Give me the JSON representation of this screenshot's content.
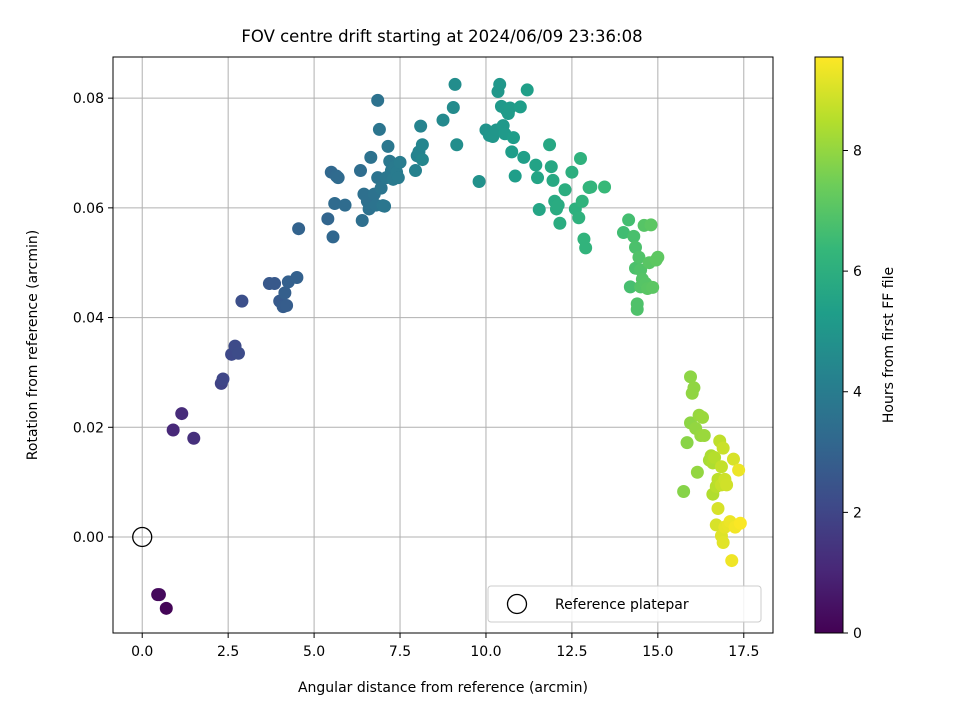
{
  "chart_data": {
    "type": "scatter",
    "title": "FOV centre drift starting at 2024/06/09 23:36:08",
    "xlabel": "Angular distance from reference (arcmin)",
    "ylabel": "Rotation from reference (arcmin)",
    "xlim": [
      -0.85,
      18.35
    ],
    "ylim": [
      -0.0175,
      0.0875
    ],
    "xticks": [
      0.0,
      2.5,
      5.0,
      7.5,
      10.0,
      12.5,
      15.0,
      17.5
    ],
    "xtick_labels": [
      "0.0",
      "2.5",
      "5.0",
      "7.5",
      "10.0",
      "12.5",
      "15.0",
      "17.5"
    ],
    "yticks": [
      0.0,
      0.02,
      0.04,
      0.06,
      0.08
    ],
    "ytick_labels": [
      "0.00",
      "0.02",
      "0.04",
      "0.06",
      "0.08"
    ],
    "grid": true,
    "colormap": "viridis",
    "colorbar": {
      "label": "Hours from first FF file",
      "range": [
        0,
        9.55
      ],
      "ticks": [
        0,
        2,
        4,
        6,
        8
      ],
      "tick_labels": [
        "0",
        "2",
        "4",
        "6",
        "8"
      ]
    },
    "legend": {
      "position": "lower-right",
      "entries": [
        "Reference platepar"
      ]
    },
    "reference": {
      "x": 0.0,
      "y": 0.0
    },
    "points": [
      [
        0.7,
        -0.013,
        0.1
      ],
      [
        0.45,
        -0.0105,
        0.2
      ],
      [
        0.5,
        -0.0105,
        0.25
      ],
      [
        0.9,
        0.0195,
        1.1
      ],
      [
        1.15,
        0.0225,
        1.2
      ],
      [
        1.5,
        0.018,
        1.3
      ],
      [
        2.3,
        0.028,
        1.9
      ],
      [
        2.35,
        0.0288,
        2.0
      ],
      [
        2.6,
        0.0333,
        2.1
      ],
      [
        2.7,
        0.0348,
        2.15
      ],
      [
        2.8,
        0.0335,
        2.2
      ],
      [
        2.9,
        0.043,
        2.3
      ],
      [
        3.7,
        0.0462,
        2.6
      ],
      [
        3.85,
        0.0462,
        2.65
      ],
      [
        4.0,
        0.043,
        2.7
      ],
      [
        4.1,
        0.042,
        2.75
      ],
      [
        4.2,
        0.0422,
        2.8
      ],
      [
        4.15,
        0.0445,
        2.85
      ],
      [
        4.25,
        0.0465,
        2.9
      ],
      [
        4.5,
        0.0473,
        2.95
      ],
      [
        4.55,
        0.0562,
        3.0
      ],
      [
        5.4,
        0.058,
        3.1
      ],
      [
        5.55,
        0.0547,
        3.15
      ],
      [
        5.5,
        0.0665,
        3.2
      ],
      [
        5.65,
        0.0658,
        3.25
      ],
      [
        5.7,
        0.0655,
        3.3
      ],
      [
        5.6,
        0.0608,
        3.3
      ],
      [
        5.9,
        0.0605,
        3.35
      ],
      [
        6.35,
        0.0668,
        3.4
      ],
      [
        6.4,
        0.0577,
        3.45
      ],
      [
        6.45,
        0.0625,
        3.5
      ],
      [
        6.55,
        0.0612,
        3.5
      ],
      [
        6.6,
        0.0598,
        3.55
      ],
      [
        6.65,
        0.0692,
        3.6
      ],
      [
        6.75,
        0.0625,
        3.6
      ],
      [
        6.8,
        0.0605,
        3.65
      ],
      [
        6.85,
        0.0655,
        3.65
      ],
      [
        6.9,
        0.0743,
        3.7
      ],
      [
        6.95,
        0.0636,
        3.7
      ],
      [
        7.0,
        0.0604,
        3.75
      ],
      [
        7.05,
        0.0603,
        3.75
      ],
      [
        7.1,
        0.0655,
        3.8
      ],
      [
        7.15,
        0.0712,
        3.8
      ],
      [
        7.2,
        0.0685,
        3.85
      ],
      [
        7.25,
        0.0668,
        3.85
      ],
      [
        7.3,
        0.0652,
        3.9
      ],
      [
        7.35,
        0.0675,
        3.9
      ],
      [
        7.4,
        0.0665,
        3.95
      ],
      [
        7.45,
        0.0655,
        3.95
      ],
      [
        7.5,
        0.0683,
        4.0
      ],
      [
        6.85,
        0.0796,
        3.6
      ],
      [
        7.95,
        0.0668,
        4.2
      ],
      [
        8.0,
        0.0695,
        4.25
      ],
      [
        8.05,
        0.0702,
        4.3
      ],
      [
        8.1,
        0.0749,
        4.3
      ],
      [
        8.15,
        0.0715,
        4.35
      ],
      [
        8.15,
        0.0688,
        4.4
      ],
      [
        8.75,
        0.076,
        4.5
      ],
      [
        9.05,
        0.0783,
        4.6
      ],
      [
        9.1,
        0.0825,
        4.65
      ],
      [
        9.15,
        0.0715,
        4.7
      ],
      [
        9.8,
        0.0648,
        4.8
      ],
      [
        10.0,
        0.0742,
        4.9
      ],
      [
        10.1,
        0.0732,
        4.95
      ],
      [
        10.2,
        0.073,
        5.0
      ],
      [
        10.3,
        0.0742,
        5.0
      ],
      [
        10.35,
        0.0812,
        5.05
      ],
      [
        10.4,
        0.0825,
        5.05
      ],
      [
        10.45,
        0.0785,
        5.1
      ],
      [
        10.5,
        0.075,
        5.1
      ],
      [
        10.55,
        0.0735,
        5.15
      ],
      [
        10.6,
        0.0778,
        5.15
      ],
      [
        10.65,
        0.0772,
        5.2
      ],
      [
        10.7,
        0.0782,
        5.2
      ],
      [
        10.75,
        0.0702,
        5.25
      ],
      [
        10.8,
        0.0728,
        5.25
      ],
      [
        10.85,
        0.0658,
        5.3
      ],
      [
        11.0,
        0.0784,
        5.3
      ],
      [
        11.1,
        0.0692,
        5.35
      ],
      [
        11.2,
        0.0815,
        5.35
      ],
      [
        11.45,
        0.0678,
        5.5
      ],
      [
        11.5,
        0.0655,
        5.55
      ],
      [
        11.55,
        0.0597,
        5.6
      ],
      [
        11.85,
        0.0715,
        5.7
      ],
      [
        11.9,
        0.0675,
        5.7
      ],
      [
        11.95,
        0.065,
        5.75
      ],
      [
        12.0,
        0.0612,
        5.8
      ],
      [
        12.05,
        0.0598,
        5.85
      ],
      [
        12.1,
        0.0605,
        5.85
      ],
      [
        12.15,
        0.0572,
        5.9
      ],
      [
        12.3,
        0.0633,
        5.95
      ],
      [
        12.5,
        0.0665,
        6.0
      ],
      [
        12.6,
        0.0598,
        6.05
      ],
      [
        12.7,
        0.0582,
        6.1
      ],
      [
        12.75,
        0.069,
        6.1
      ],
      [
        12.8,
        0.0612,
        6.15
      ],
      [
        12.85,
        0.0543,
        6.2
      ],
      [
        12.9,
        0.0527,
        6.2
      ],
      [
        13.0,
        0.0637,
        6.25
      ],
      [
        13.05,
        0.0638,
        6.25
      ],
      [
        13.45,
        0.0638,
        6.4
      ],
      [
        14.0,
        0.0555,
        6.6
      ],
      [
        14.15,
        0.0578,
        6.65
      ],
      [
        14.2,
        0.0456,
        6.7
      ],
      [
        14.3,
        0.0548,
        6.75
      ],
      [
        14.35,
        0.0528,
        6.8
      ],
      [
        14.35,
        0.049,
        6.8
      ],
      [
        14.4,
        0.0415,
        6.85
      ],
      [
        14.4,
        0.0425,
        6.85
      ],
      [
        14.45,
        0.051,
        6.9
      ],
      [
        14.5,
        0.0487,
        6.9
      ],
      [
        14.5,
        0.0456,
        6.95
      ],
      [
        14.55,
        0.047,
        6.95
      ],
      [
        14.6,
        0.0568,
        7.0
      ],
      [
        14.65,
        0.0462,
        7.0
      ],
      [
        14.7,
        0.0453,
        7.05
      ],
      [
        14.75,
        0.05,
        7.05
      ],
      [
        14.8,
        0.0569,
        7.1
      ],
      [
        14.85,
        0.0455,
        7.1
      ],
      [
        14.95,
        0.0505,
        7.15
      ],
      [
        15.0,
        0.051,
        7.15
      ],
      [
        15.75,
        0.0083,
        7.8
      ],
      [
        15.85,
        0.0172,
        7.85
      ],
      [
        15.95,
        0.0292,
        7.9
      ],
      [
        15.95,
        0.0208,
        7.9
      ],
      [
        16.0,
        0.0262,
        7.95
      ],
      [
        16.05,
        0.0272,
        7.95
      ],
      [
        16.1,
        0.0198,
        8.0
      ],
      [
        16.15,
        0.0118,
        8.0
      ],
      [
        16.2,
        0.0222,
        8.05
      ],
      [
        16.25,
        0.0185,
        8.05
      ],
      [
        16.3,
        0.0218,
        8.1
      ],
      [
        16.35,
        0.0185,
        8.1
      ],
      [
        16.5,
        0.014,
        8.3
      ],
      [
        16.55,
        0.0148,
        8.35
      ],
      [
        16.6,
        0.0135,
        8.4
      ],
      [
        16.6,
        0.0078,
        8.45
      ],
      [
        16.65,
        0.0145,
        8.5
      ],
      [
        16.7,
        0.0092,
        8.55
      ],
      [
        16.75,
        0.0105,
        8.6
      ],
      [
        16.8,
        0.0175,
        8.65
      ],
      [
        16.85,
        0.0128,
        8.7
      ],
      [
        16.85,
        0.0095,
        8.75
      ],
      [
        16.9,
        0.0162,
        8.8
      ],
      [
        16.95,
        0.0105,
        8.85
      ],
      [
        17.0,
        0.0095,
        8.9
      ],
      [
        16.7,
        0.0022,
        9.0
      ],
      [
        16.75,
        0.0052,
        9.0
      ],
      [
        16.85,
        0.0002,
        9.1
      ],
      [
        16.9,
        -0.001,
        9.15
      ],
      [
        16.95,
        0.0018,
        9.2
      ],
      [
        17.05,
        0.0022,
        9.25
      ],
      [
        17.1,
        0.0028,
        9.3
      ],
      [
        17.15,
        -0.0043,
        9.35
      ],
      [
        17.2,
        0.0142,
        9.0
      ],
      [
        17.25,
        0.0018,
        9.4
      ],
      [
        17.35,
        0.0122,
        9.3
      ],
      [
        17.4,
        0.0025,
        9.5
      ]
    ]
  }
}
